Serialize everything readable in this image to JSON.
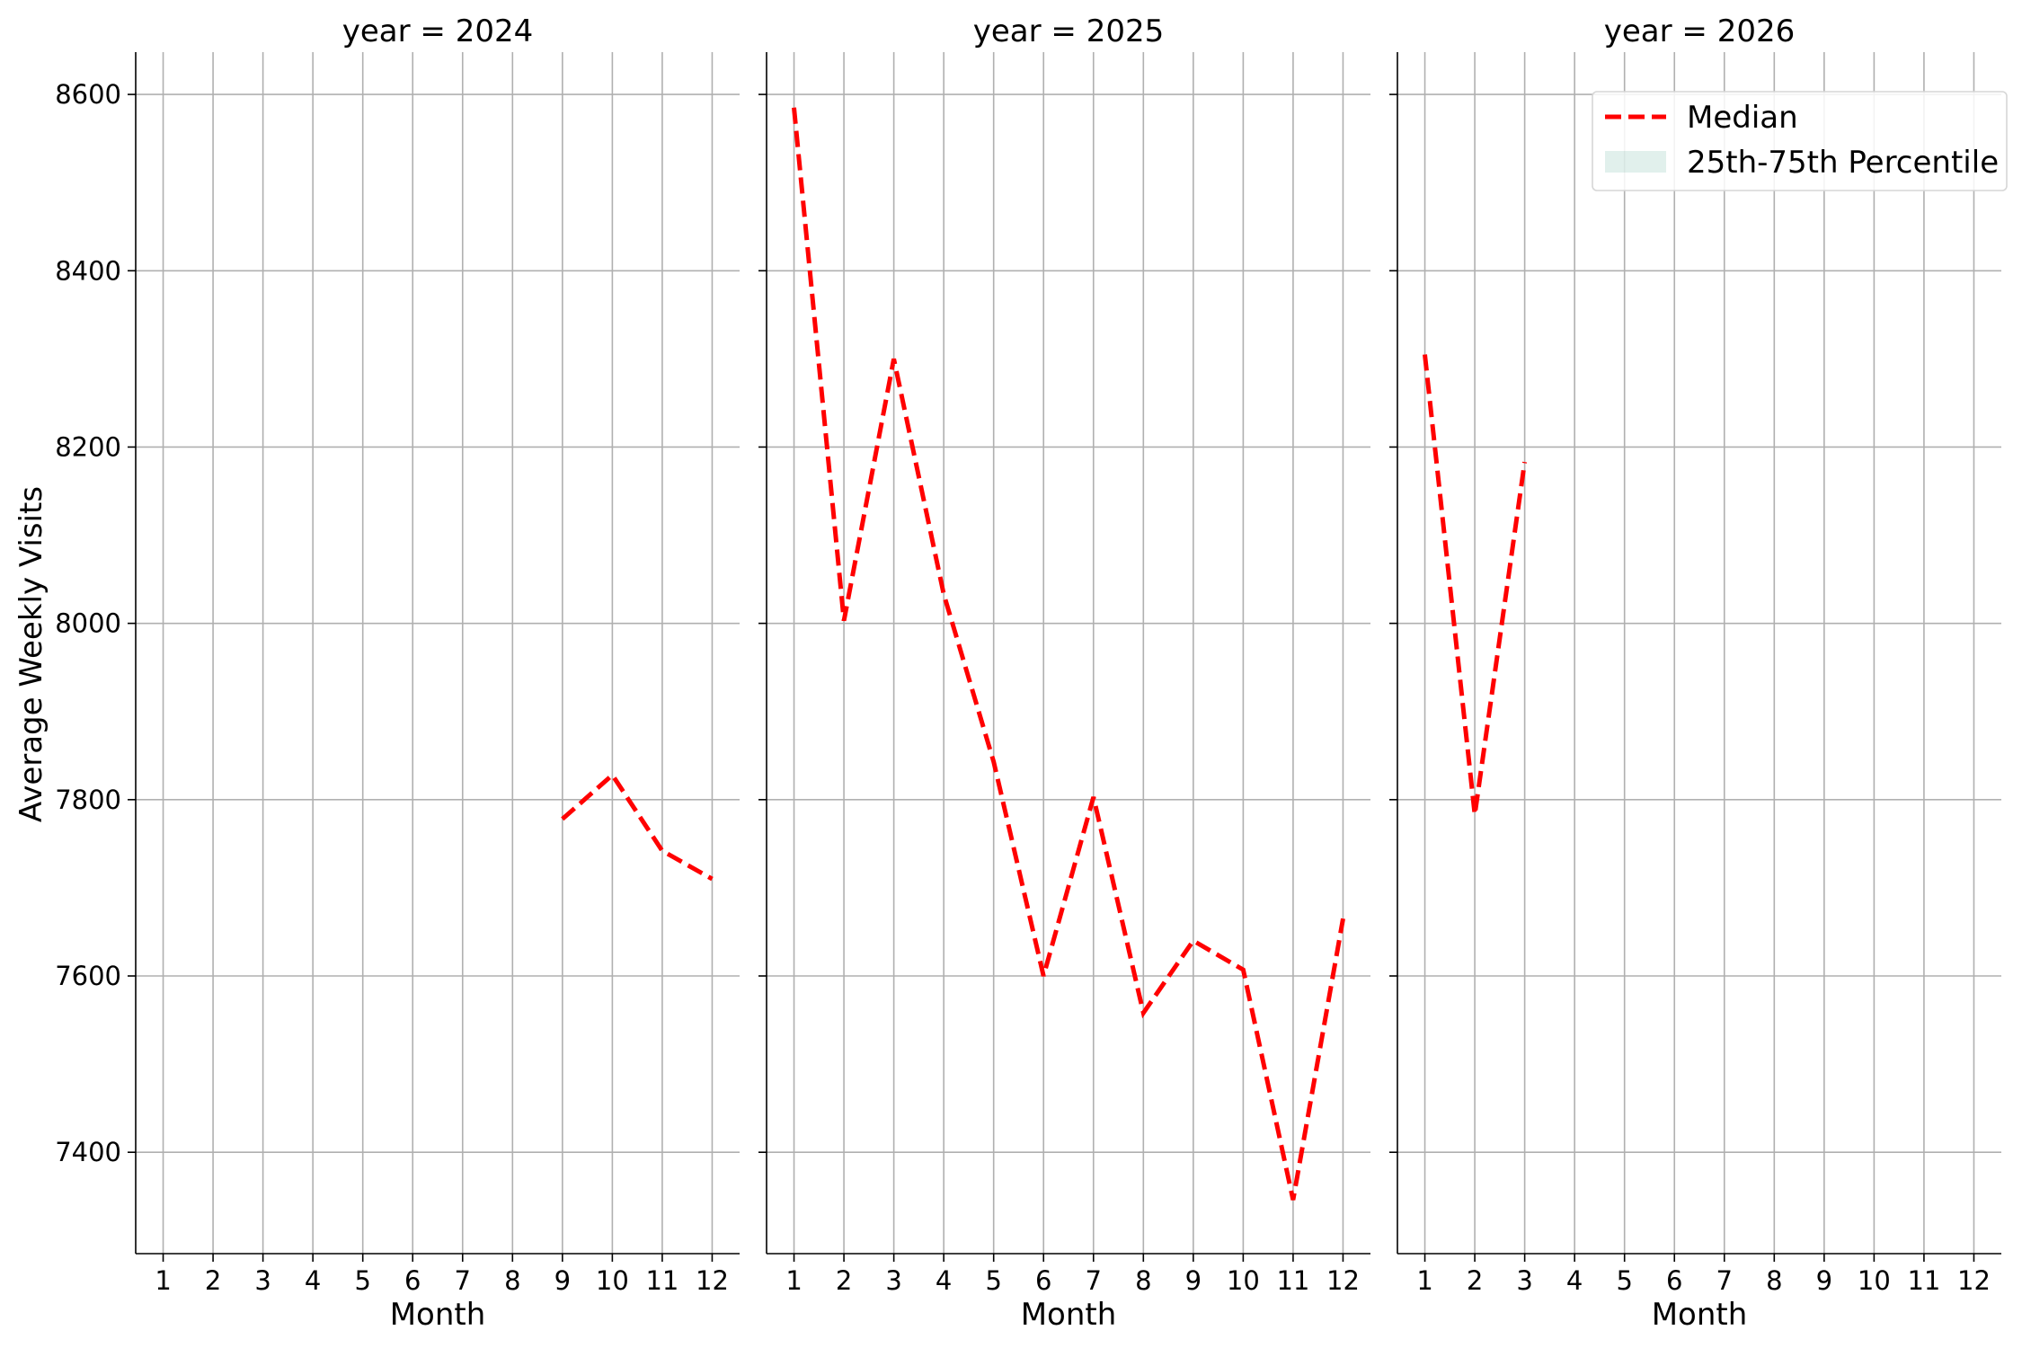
{
  "chart_data": {
    "type": "line",
    "layout": "facet-columns",
    "ylabel": "Average Weekly Visits",
    "ylim": [
      7285,
      8648
    ],
    "yticks": [
      7400,
      7600,
      7800,
      8000,
      8200,
      8400,
      8600
    ],
    "xlim": [
      0.45,
      12.55
    ],
    "xticks": [
      1,
      2,
      3,
      4,
      5,
      6,
      7,
      8,
      9,
      10,
      11,
      12
    ],
    "grid": true,
    "legend": {
      "location": "upper right of last panel",
      "entries": [
        {
          "label": "Median",
          "style": "dashed-line",
          "color": "#ff0000"
        },
        {
          "label": "25th-75th Percentile",
          "style": "band",
          "color": "#69b3a2"
        }
      ]
    },
    "panels": [
      {
        "title": "year = 2024",
        "xlabel": "Month",
        "series": [
          {
            "name": "Median",
            "x": [
              9,
              10,
              11,
              12
            ],
            "y": [
              7778,
              7828,
              7742,
              7710
            ]
          }
        ]
      },
      {
        "title": "year = 2025",
        "xlabel": "Month",
        "series": [
          {
            "name": "Median",
            "x": [
              1,
              2,
              3,
              4,
              5,
              6,
              7,
              8,
              9,
              10,
              11,
              12
            ],
            "y": [
              8585,
              8003,
              8300,
              8033,
              7843,
              7600,
              7803,
              7558,
              7640,
              7607,
              7346,
              7665
            ]
          }
        ]
      },
      {
        "title": "year = 2026",
        "xlabel": "Month",
        "series": [
          {
            "name": "Median",
            "x": [
              1,
              2,
              3
            ],
            "y": [
              8305,
              7783,
              8183
            ]
          }
        ]
      }
    ]
  }
}
